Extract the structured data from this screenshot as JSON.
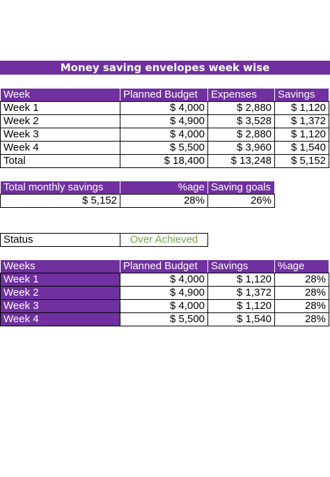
{
  "title": "Money saving envelopes week wise",
  "weekly_table": {
    "headers": [
      "Week",
      "Planned Budget",
      "Expenses",
      "Savings"
    ],
    "rows": [
      [
        "Week 1",
        "$ 4,000",
        "$ 2,880",
        "$ 1,120"
      ],
      [
        "Week 2",
        "$ 4,900",
        "$ 3,528",
        "$ 1,372"
      ],
      [
        "Week 3",
        "$ 4,000",
        "$ 2,880",
        "$ 1,120"
      ],
      [
        "Week 4",
        "$ 5,500",
        "$ 3,960",
        "$ 1,540"
      ],
      [
        "Total",
        "$ 18,400",
        "$ 13,248",
        "$ 5,152"
      ]
    ]
  },
  "summary_table": {
    "headers": [
      "Total monthly savings",
      "%age",
      "Saving goals"
    ],
    "values": [
      "$ 5,152",
      "28%",
      "26%"
    ]
  },
  "status": {
    "label": "Status",
    "value": "Over Achieved",
    "value_color": "#70ad47"
  },
  "savings_table": {
    "headers": [
      "Weeks",
      "Planned Budget",
      "Savings",
      "%age"
    ],
    "rows": [
      [
        "Week 1",
        "$ 4,000",
        "$ 1,120",
        "28%"
      ],
      [
        "Week 2",
        "$ 4,900",
        "$ 1,372",
        "28%"
      ],
      [
        "Week 3",
        "$ 4,000",
        "$ 1,120",
        "28%"
      ],
      [
        "Week 4",
        "$ 5,500",
        "$ 1,540",
        "28%"
      ]
    ]
  },
  "colors": {
    "accent": "#7030a0",
    "status_ok": "#70ad47"
  }
}
